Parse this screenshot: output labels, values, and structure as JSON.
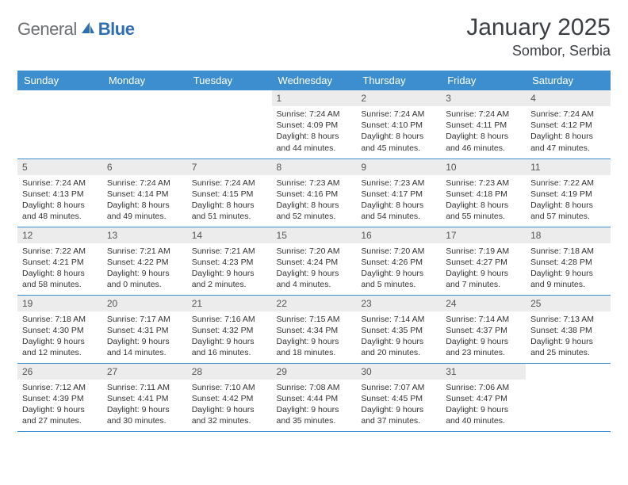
{
  "logo": {
    "part1": "General",
    "part2": "Blue"
  },
  "title": "January 2025",
  "location": "Sombor, Serbia",
  "colors": {
    "header_bg": "#3d8ecf",
    "header_text": "#ffffff",
    "daynum_bg": "#ececec",
    "border": "#3d8ecf",
    "logo_gray": "#6b6e72",
    "logo_blue": "#2e6fb4"
  },
  "day_headers": [
    "Sunday",
    "Monday",
    "Tuesday",
    "Wednesday",
    "Thursday",
    "Friday",
    "Saturday"
  ],
  "weeks": [
    [
      null,
      null,
      null,
      {
        "n": "1",
        "sr": "Sunrise: 7:24 AM",
        "ss": "Sunset: 4:09 PM",
        "d1": "Daylight: 8 hours",
        "d2": "and 44 minutes."
      },
      {
        "n": "2",
        "sr": "Sunrise: 7:24 AM",
        "ss": "Sunset: 4:10 PM",
        "d1": "Daylight: 8 hours",
        "d2": "and 45 minutes."
      },
      {
        "n": "3",
        "sr": "Sunrise: 7:24 AM",
        "ss": "Sunset: 4:11 PM",
        "d1": "Daylight: 8 hours",
        "d2": "and 46 minutes."
      },
      {
        "n": "4",
        "sr": "Sunrise: 7:24 AM",
        "ss": "Sunset: 4:12 PM",
        "d1": "Daylight: 8 hours",
        "d2": "and 47 minutes."
      }
    ],
    [
      {
        "n": "5",
        "sr": "Sunrise: 7:24 AM",
        "ss": "Sunset: 4:13 PM",
        "d1": "Daylight: 8 hours",
        "d2": "and 48 minutes."
      },
      {
        "n": "6",
        "sr": "Sunrise: 7:24 AM",
        "ss": "Sunset: 4:14 PM",
        "d1": "Daylight: 8 hours",
        "d2": "and 49 minutes."
      },
      {
        "n": "7",
        "sr": "Sunrise: 7:24 AM",
        "ss": "Sunset: 4:15 PM",
        "d1": "Daylight: 8 hours",
        "d2": "and 51 minutes."
      },
      {
        "n": "8",
        "sr": "Sunrise: 7:23 AM",
        "ss": "Sunset: 4:16 PM",
        "d1": "Daylight: 8 hours",
        "d2": "and 52 minutes."
      },
      {
        "n": "9",
        "sr": "Sunrise: 7:23 AM",
        "ss": "Sunset: 4:17 PM",
        "d1": "Daylight: 8 hours",
        "d2": "and 54 minutes."
      },
      {
        "n": "10",
        "sr": "Sunrise: 7:23 AM",
        "ss": "Sunset: 4:18 PM",
        "d1": "Daylight: 8 hours",
        "d2": "and 55 minutes."
      },
      {
        "n": "11",
        "sr": "Sunrise: 7:22 AM",
        "ss": "Sunset: 4:19 PM",
        "d1": "Daylight: 8 hours",
        "d2": "and 57 minutes."
      }
    ],
    [
      {
        "n": "12",
        "sr": "Sunrise: 7:22 AM",
        "ss": "Sunset: 4:21 PM",
        "d1": "Daylight: 8 hours",
        "d2": "and 58 minutes."
      },
      {
        "n": "13",
        "sr": "Sunrise: 7:21 AM",
        "ss": "Sunset: 4:22 PM",
        "d1": "Daylight: 9 hours",
        "d2": "and 0 minutes."
      },
      {
        "n": "14",
        "sr": "Sunrise: 7:21 AM",
        "ss": "Sunset: 4:23 PM",
        "d1": "Daylight: 9 hours",
        "d2": "and 2 minutes."
      },
      {
        "n": "15",
        "sr": "Sunrise: 7:20 AM",
        "ss": "Sunset: 4:24 PM",
        "d1": "Daylight: 9 hours",
        "d2": "and 4 minutes."
      },
      {
        "n": "16",
        "sr": "Sunrise: 7:20 AM",
        "ss": "Sunset: 4:26 PM",
        "d1": "Daylight: 9 hours",
        "d2": "and 5 minutes."
      },
      {
        "n": "17",
        "sr": "Sunrise: 7:19 AM",
        "ss": "Sunset: 4:27 PM",
        "d1": "Daylight: 9 hours",
        "d2": "and 7 minutes."
      },
      {
        "n": "18",
        "sr": "Sunrise: 7:18 AM",
        "ss": "Sunset: 4:28 PM",
        "d1": "Daylight: 9 hours",
        "d2": "and 9 minutes."
      }
    ],
    [
      {
        "n": "19",
        "sr": "Sunrise: 7:18 AM",
        "ss": "Sunset: 4:30 PM",
        "d1": "Daylight: 9 hours",
        "d2": "and 12 minutes."
      },
      {
        "n": "20",
        "sr": "Sunrise: 7:17 AM",
        "ss": "Sunset: 4:31 PM",
        "d1": "Daylight: 9 hours",
        "d2": "and 14 minutes."
      },
      {
        "n": "21",
        "sr": "Sunrise: 7:16 AM",
        "ss": "Sunset: 4:32 PM",
        "d1": "Daylight: 9 hours",
        "d2": "and 16 minutes."
      },
      {
        "n": "22",
        "sr": "Sunrise: 7:15 AM",
        "ss": "Sunset: 4:34 PM",
        "d1": "Daylight: 9 hours",
        "d2": "and 18 minutes."
      },
      {
        "n": "23",
        "sr": "Sunrise: 7:14 AM",
        "ss": "Sunset: 4:35 PM",
        "d1": "Daylight: 9 hours",
        "d2": "and 20 minutes."
      },
      {
        "n": "24",
        "sr": "Sunrise: 7:14 AM",
        "ss": "Sunset: 4:37 PM",
        "d1": "Daylight: 9 hours",
        "d2": "and 23 minutes."
      },
      {
        "n": "25",
        "sr": "Sunrise: 7:13 AM",
        "ss": "Sunset: 4:38 PM",
        "d1": "Daylight: 9 hours",
        "d2": "and 25 minutes."
      }
    ],
    [
      {
        "n": "26",
        "sr": "Sunrise: 7:12 AM",
        "ss": "Sunset: 4:39 PM",
        "d1": "Daylight: 9 hours",
        "d2": "and 27 minutes."
      },
      {
        "n": "27",
        "sr": "Sunrise: 7:11 AM",
        "ss": "Sunset: 4:41 PM",
        "d1": "Daylight: 9 hours",
        "d2": "and 30 minutes."
      },
      {
        "n": "28",
        "sr": "Sunrise: 7:10 AM",
        "ss": "Sunset: 4:42 PM",
        "d1": "Daylight: 9 hours",
        "d2": "and 32 minutes."
      },
      {
        "n": "29",
        "sr": "Sunrise: 7:08 AM",
        "ss": "Sunset: 4:44 PM",
        "d1": "Daylight: 9 hours",
        "d2": "and 35 minutes."
      },
      {
        "n": "30",
        "sr": "Sunrise: 7:07 AM",
        "ss": "Sunset: 4:45 PM",
        "d1": "Daylight: 9 hours",
        "d2": "and 37 minutes."
      },
      {
        "n": "31",
        "sr": "Sunrise: 7:06 AM",
        "ss": "Sunset: 4:47 PM",
        "d1": "Daylight: 9 hours",
        "d2": "and 40 minutes."
      },
      null
    ]
  ]
}
